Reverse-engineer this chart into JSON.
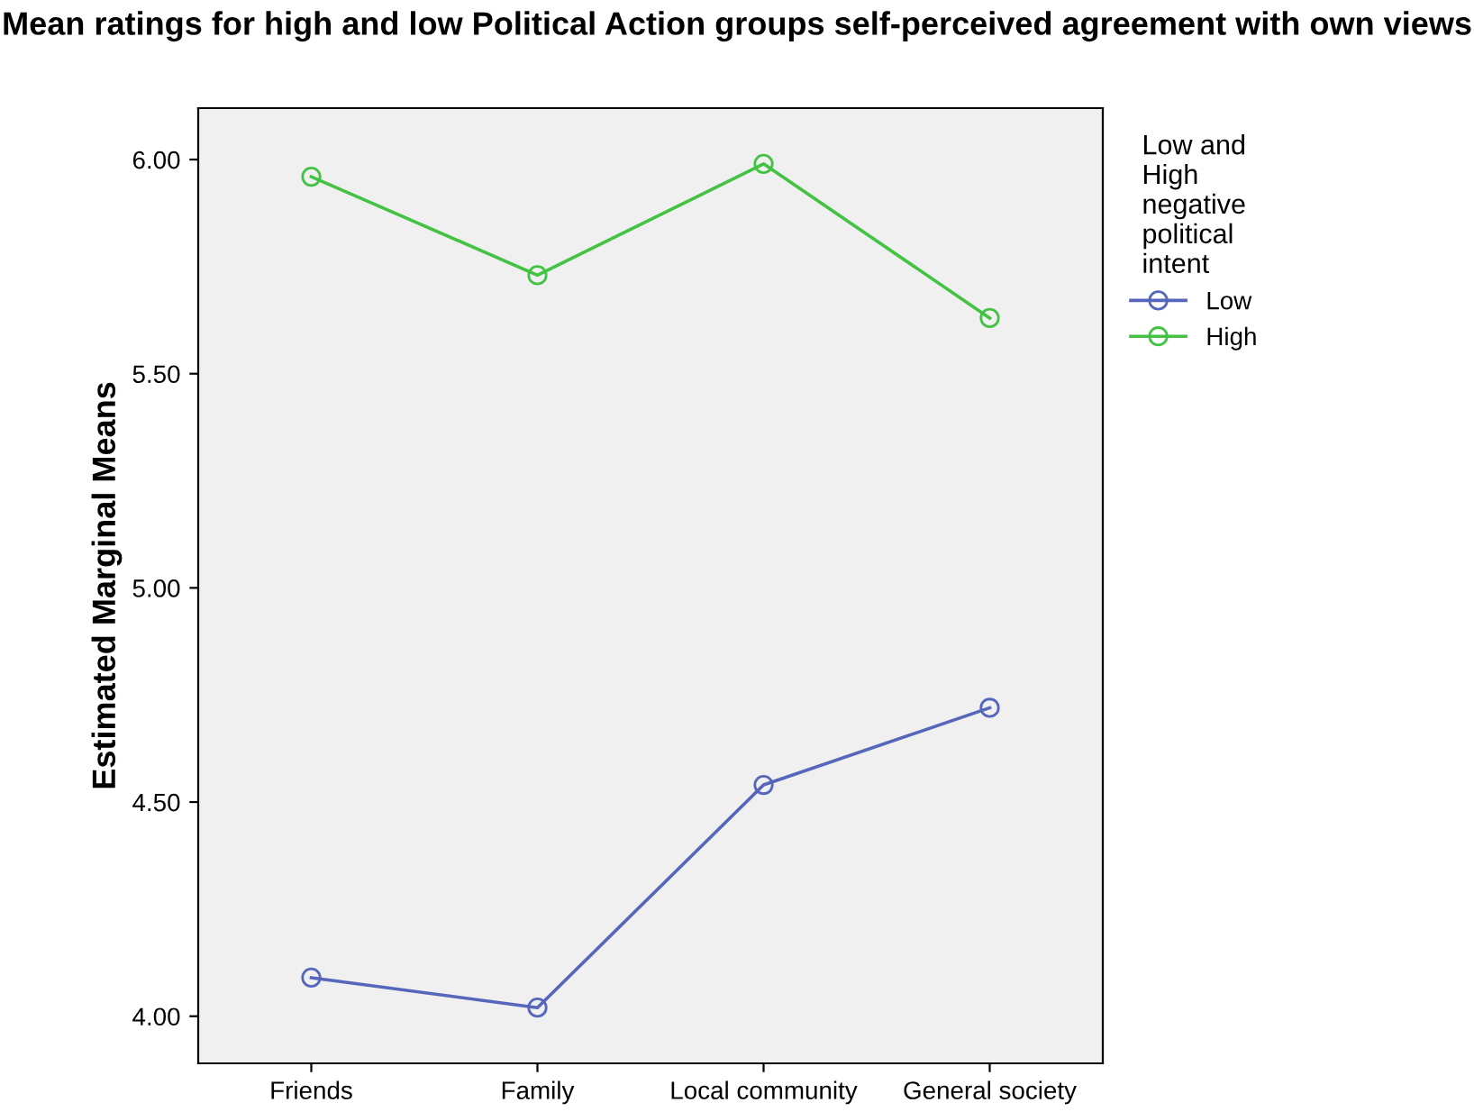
{
  "chart_data": {
    "type": "line",
    "title": "Mean ratings for high and low Political Action groups self-perceived agreement with own views",
    "ylabel": "Estimated Marginal Means",
    "legend_title": "Low and\nHigh\nnegative\npolitical\nintent",
    "categories": [
      "Friends",
      "Family",
      "Local community",
      "General society"
    ],
    "series": [
      {
        "name": "Low",
        "color": "#5566bb",
        "values": [
          4.09,
          4.02,
          4.54,
          4.72
        ]
      },
      {
        "name": "High",
        "color": "#44c244",
        "values": [
          5.96,
          5.73,
          5.99,
          5.63
        ]
      }
    ],
    "ylim": [
      3.89,
      6.12
    ],
    "yticks": [
      {
        "value": 4,
        "label": "4.00"
      },
      {
        "value": 4.5,
        "label": "4.50"
      },
      {
        "value": 5,
        "label": "5.00"
      },
      {
        "value": 5.5,
        "label": "5.50"
      },
      {
        "value": 6,
        "label": "6.00"
      }
    ],
    "marker": "circle",
    "line_style": "solid",
    "grid": false,
    "legend": "top right"
  }
}
